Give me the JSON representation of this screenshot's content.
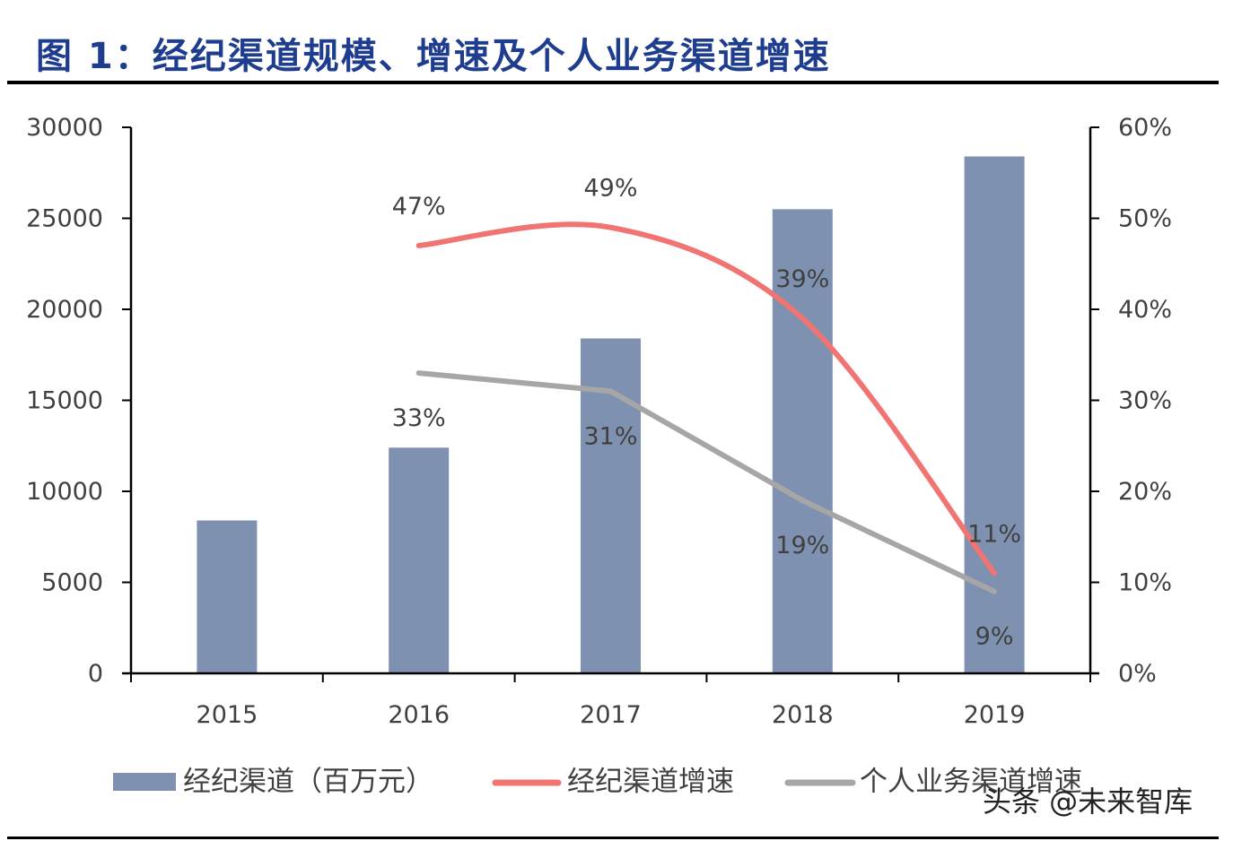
{
  "title": "图 1：经纪渠道规模、增速及个人业务渠道增速",
  "watermark": "头条 @未来智库",
  "chart_data": {
    "type": "bar+line",
    "title": "图 1：经纪渠道规模、增速及个人业务渠道增速",
    "categories": [
      "2015",
      "2016",
      "2017",
      "2018",
      "2019"
    ],
    "y_left": {
      "range": [
        0,
        30000
      ],
      "ticks": [
        "0",
        "5000",
        "10000",
        "15000",
        "20000",
        "25000",
        "30000"
      ]
    },
    "y_right": {
      "range": [
        0,
        60
      ],
      "ticks": [
        "0%",
        "10%",
        "20%",
        "30%",
        "40%",
        "50%",
        "60%"
      ]
    },
    "grid": false,
    "legend_position": "bottom",
    "series": [
      {
        "name": "经纪渠道（百万元）",
        "type": "bar",
        "axis": "left",
        "color": "#7f91b0",
        "values": [
          8400,
          12400,
          18400,
          25500,
          28400
        ]
      },
      {
        "name": "经纪渠道增速",
        "type": "line",
        "axis": "right",
        "color": "#f07472",
        "values": [
          null,
          47,
          49,
          39,
          11
        ],
        "labels": [
          "",
          "47%",
          "49%",
          "39%",
          "11%"
        ]
      },
      {
        "name": "个人业务渠道增速",
        "type": "line",
        "axis": "right",
        "color": "#a6a6a6",
        "values": [
          null,
          33,
          31,
          19,
          9
        ],
        "labels": [
          "",
          "33%",
          "31%",
          "19%",
          "9%"
        ]
      }
    ]
  }
}
